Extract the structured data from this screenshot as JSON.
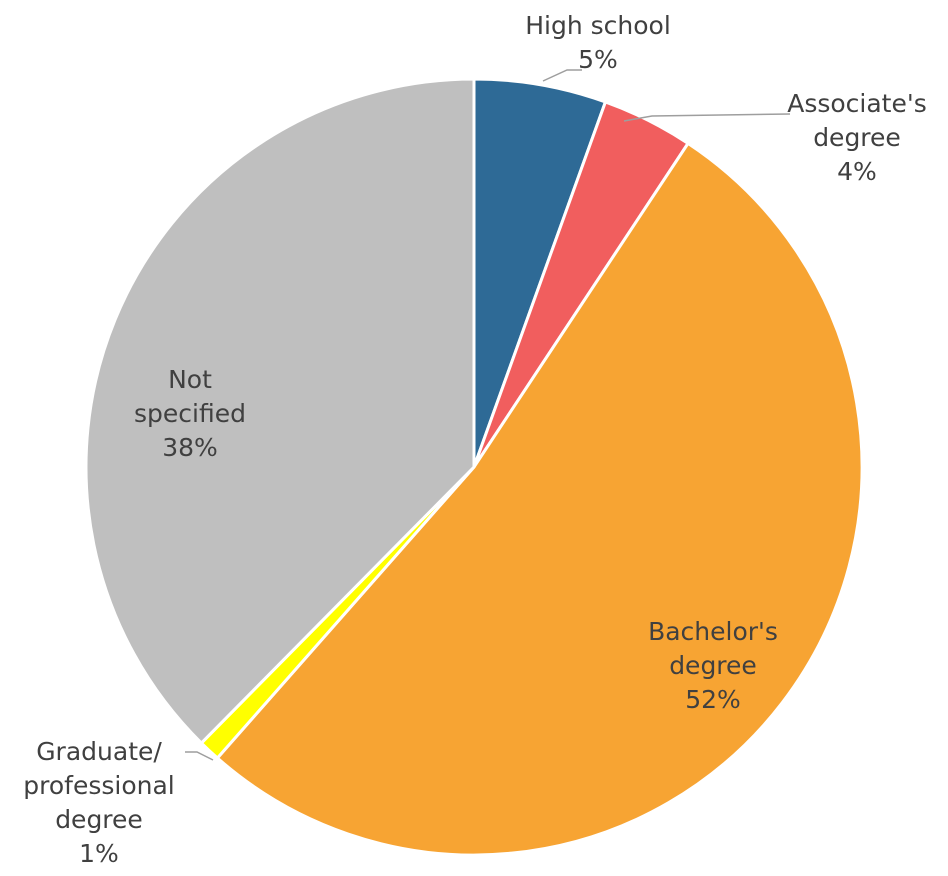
{
  "chart_data": {
    "type": "pie",
    "title": "",
    "start_angle_deg": 0,
    "direction": "clockwise",
    "slices": [
      {
        "label_lines": [
          "High school",
          "5%"
        ],
        "value": 5.5,
        "display": "5%",
        "color": "#2e6a96"
      },
      {
        "label_lines": [
          "Associate's",
          "degree",
          "4%"
        ],
        "value": 3.8,
        "display": "4%",
        "color": "#f15e5e"
      },
      {
        "label_lines": [
          "Bachelor's",
          "degree",
          "52%"
        ],
        "value": 52.2,
        "display": "52%",
        "color": "#f7a433"
      },
      {
        "label_lines": [
          "Graduate/",
          "professional",
          "degree",
          "1%"
        ],
        "value": 0.9,
        "display": "1%",
        "color": "#ffff00"
      },
      {
        "label_lines": [
          "Not",
          "specified",
          "38%"
        ],
        "value": 37.6,
        "display": "38%",
        "color": "#bfbfbf"
      }
    ]
  }
}
